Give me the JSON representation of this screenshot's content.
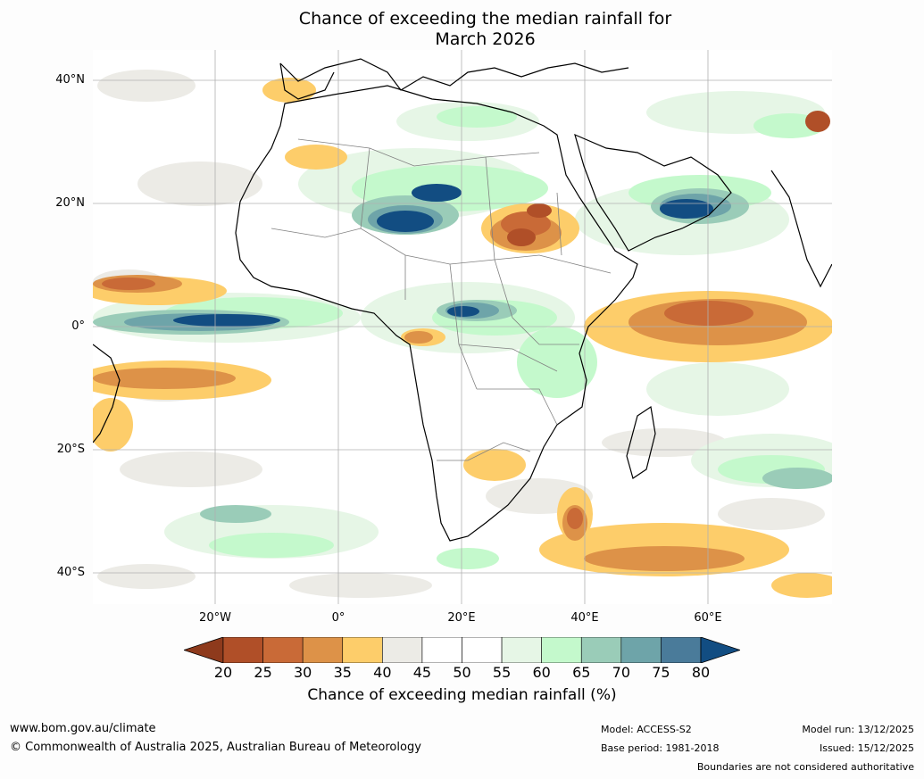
{
  "title": {
    "line1": "Chance of exceeding the median rainfall for",
    "line2": "March 2026"
  },
  "map": {
    "lat_labels": [
      "40°N",
      "20°N",
      "0°",
      "20°S",
      "40°S"
    ],
    "lon_labels": [
      "20°W",
      "0°",
      "20°E",
      "40°E",
      "60°E"
    ]
  },
  "colorbar": {
    "ticks": [
      "20",
      "25",
      "30",
      "35",
      "40",
      "45",
      "50",
      "55",
      "60",
      "65",
      "70",
      "75",
      "80"
    ],
    "label": "Chance of exceeding median rainfall (%)",
    "colors": [
      "#8e3a1c",
      "#b04f28",
      "#c96a37",
      "#dd9248",
      "#fdcd6a",
      "#ecebe6",
      "#ffffff",
      "#ffffff",
      "#e6f6e6",
      "#c4f9cc",
      "#9accb8",
      "#6ea4a9",
      "#4a7b9a",
      "#124d82"
    ]
  },
  "chart_data": {
    "type": "map",
    "title": "Chance of exceeding the median rainfall for March 2026",
    "variable": "Chance of exceeding median rainfall (%)",
    "levels": [
      20,
      25,
      30,
      35,
      40,
      45,
      50,
      55,
      60,
      65,
      70,
      75,
      80
    ],
    "lat_ticks": [
      "40°N",
      "20°N",
      "0°",
      "20°S",
      "40°S"
    ],
    "lon_ticks": [
      "20°W",
      "0°",
      "20°E",
      "40°E",
      "60°E"
    ]
  },
  "footer": {
    "website": "www.bom.gov.au/climate",
    "copyright": "© Commonwealth of Australia 2025, Australian Bureau of Meteorology",
    "model": "Model: ACCESS-S2",
    "base_period": "Base period: 1981-2018",
    "model_run": "Model run: 13/12/2025",
    "issued": "Issued: 15/12/2025",
    "disclaimer": "Boundaries are not considered authoritative"
  }
}
